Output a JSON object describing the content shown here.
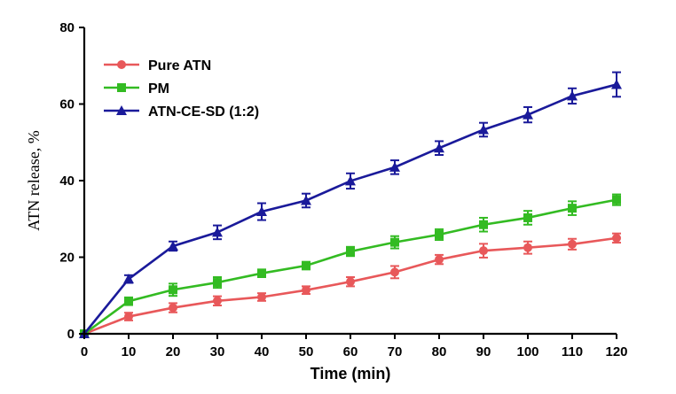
{
  "chart_data": {
    "type": "line",
    "title": "",
    "xlabel": "Time (min)",
    "ylabel": "ATN release, %",
    "xlim": [
      0,
      120
    ],
    "ylim": [
      0,
      80
    ],
    "x_ticks": [
      0,
      10,
      20,
      30,
      40,
      50,
      60,
      70,
      80,
      90,
      100,
      110,
      120
    ],
    "y_ticks": [
      0,
      20,
      40,
      60,
      80
    ],
    "x_tick_labels": [
      "0",
      "10",
      "20",
      "30",
      "40",
      "50",
      "60",
      "70",
      "80",
      "90",
      "100",
      "110",
      "120"
    ],
    "y_tick_labels": [
      "0",
      "20",
      "40",
      "60",
      "80"
    ],
    "grid": false,
    "legend_position": "top-left",
    "x": [
      0,
      10,
      20,
      30,
      40,
      50,
      60,
      70,
      80,
      90,
      100,
      110,
      120
    ],
    "series": [
      {
        "name": "Pure ATN",
        "color": "#e8585a",
        "marker": "circle",
        "values": [
          0,
          4.5,
          6.8,
          8.6,
          9.6,
          11.4,
          13.6,
          16.1,
          19.4,
          21.7,
          22.5,
          23.4,
          25.0
        ],
        "errors": [
          0,
          1.0,
          1.2,
          1.2,
          1.0,
          1.0,
          1.2,
          1.6,
          1.2,
          1.8,
          1.6,
          1.4,
          1.2
        ]
      },
      {
        "name": "PM",
        "color": "#33bb22",
        "marker": "square",
        "values": [
          0,
          8.5,
          11.5,
          13.4,
          15.8,
          17.8,
          21.5,
          23.9,
          25.9,
          28.5,
          30.3,
          32.8,
          35.0
        ],
        "errors": [
          0,
          1.0,
          1.6,
          1.4,
          1.0,
          1.0,
          1.2,
          1.6,
          1.4,
          1.8,
          1.8,
          1.8,
          1.4
        ]
      },
      {
        "name": "ATN-CE-SD (1:2)",
        "color": "#1a1a9a",
        "marker": "triangle",
        "values": [
          0,
          14.3,
          22.9,
          26.5,
          31.9,
          34.8,
          39.9,
          43.5,
          48.5,
          53.3,
          57.2,
          62.1,
          65.1
        ],
        "errors": [
          0,
          1.0,
          1.2,
          1.8,
          2.2,
          1.8,
          2.0,
          1.8,
          1.8,
          1.8,
          2.0,
          2.0,
          3.2
        ]
      }
    ]
  }
}
